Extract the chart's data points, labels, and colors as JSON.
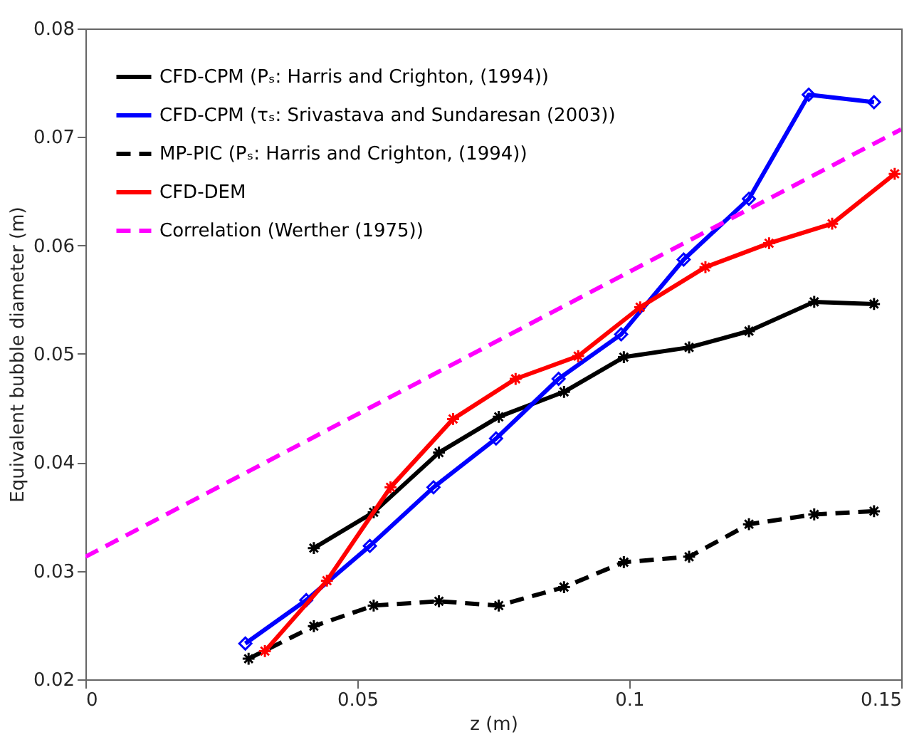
{
  "chart_data": {
    "type": "line",
    "xlabel": "z (m)",
    "ylabel": "Equivalent bubble diameter (m)",
    "xlim": [
      0,
      0.15
    ],
    "xticks": [
      0,
      0.05,
      0.1,
      0.15
    ],
    "ylim": [
      0.02,
      0.08
    ],
    "yticks": [
      0.02,
      0.03,
      0.04,
      0.05,
      0.06,
      0.07,
      0.08
    ],
    "grid": false,
    "legend": "top left",
    "series": [
      {
        "name": "CFD-CPM (Pₛ: Harris and Crighton, (1994))",
        "color": "#000000",
        "marker": "cross",
        "line_style": "solid",
        "x": [
          0.042,
          0.053,
          0.065,
          0.076,
          0.088,
          0.099,
          0.111,
          0.122,
          0.134,
          0.145
        ],
        "values": [
          0.0321,
          0.0354,
          0.0409,
          0.0442,
          0.0465,
          0.0497,
          0.0506,
          0.0521,
          0.0548,
          0.0546
        ]
      },
      {
        "name": "CFD-CPM (τₛ: Srivastava and Sundaresan (2003))",
        "color": "#0000ff",
        "marker": "diamond",
        "line_style": "solid",
        "x": [
          0.0294,
          0.0406,
          0.0523,
          0.064,
          0.0755,
          0.087,
          0.0985,
          0.11,
          0.122,
          0.133,
          0.145
        ],
        "values": [
          0.0233,
          0.0273,
          0.0323,
          0.0377,
          0.0422,
          0.0477,
          0.0518,
          0.0587,
          0.0643,
          0.0739,
          0.0732
        ]
      },
      {
        "name": "MP-PIC (Pₛ: Harris and Crighton, (1994))",
        "color": "#000000",
        "marker": "cross",
        "line_style": "dashed",
        "x": [
          0.03,
          0.042,
          0.053,
          0.065,
          0.076,
          0.088,
          0.099,
          0.111,
          0.122,
          0.134,
          0.145
        ],
        "values": [
          0.0219,
          0.0249,
          0.0268,
          0.0272,
          0.0268,
          0.0285,
          0.0308,
          0.0313,
          0.0343,
          0.0352,
          0.0355
        ]
      },
      {
        "name": "CFD-DEM",
        "color": "#ff0000",
        "marker": "cross",
        "line_style": "solid",
        "x": [
          0.033,
          0.0444,
          0.0561,
          0.0676,
          0.0791,
          0.0906,
          0.102,
          0.114,
          0.1257,
          0.1373,
          0.1488
        ],
        "values": [
          0.0226,
          0.0291,
          0.0377,
          0.044,
          0.0477,
          0.0498,
          0.0543,
          0.058,
          0.0602,
          0.062,
          0.0666
        ]
      },
      {
        "name": "Correlation (Werther (1975))",
        "color": "#ff00ff",
        "marker": "none",
        "line_style": "dashed",
        "x": [
          0,
          0.15
        ],
        "values": [
          0.0313,
          0.0707
        ]
      }
    ]
  }
}
